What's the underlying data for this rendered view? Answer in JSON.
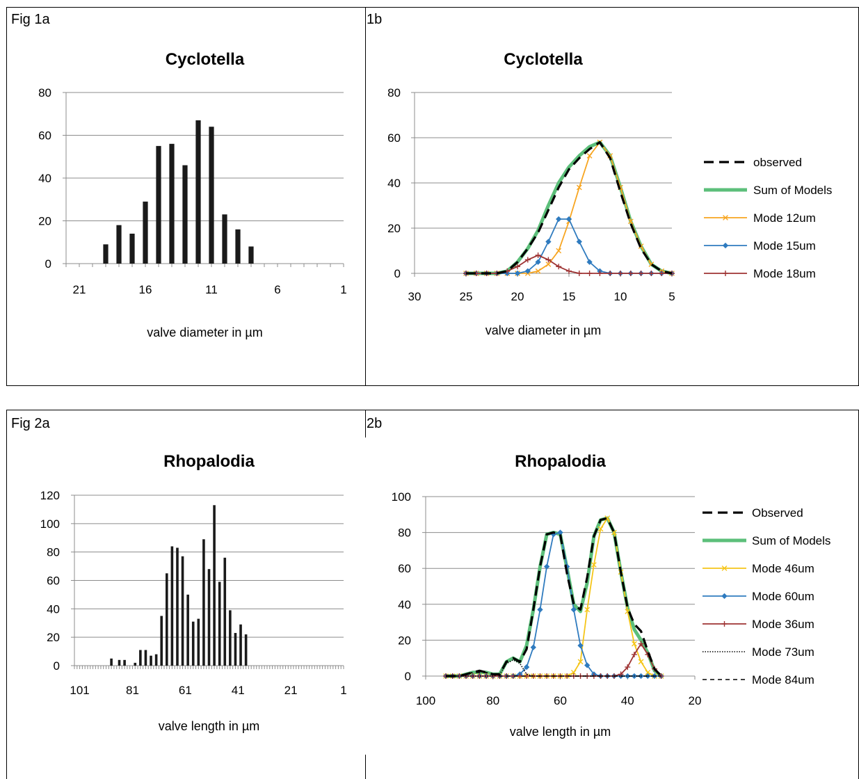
{
  "panels": {
    "fig1a_label": "Fig 1a",
    "fig1b_label": "1b",
    "fig2a_label": "Fig 2a",
    "fig2b_label": "2b"
  },
  "chart_data": [
    {
      "id": "fig1a",
      "type": "bar",
      "title": "Cyclotella",
      "xlabel": "valve diameter in µm",
      "ylabel": "",
      "x_reversed": true,
      "xlim": [
        22,
        1
      ],
      "ylim": [
        0,
        80
      ],
      "yticks": [
        0,
        20,
        40,
        60,
        80
      ],
      "xticks": [
        21,
        16,
        11,
        6,
        1
      ],
      "grid": true,
      "legend": "none",
      "bar_color": "#1a1a1a",
      "x": [
        19,
        18,
        17,
        16,
        15,
        14,
        13,
        12,
        11,
        10,
        9,
        8
      ],
      "values": [
        9,
        18,
        14,
        29,
        55,
        56,
        46,
        67,
        64,
        23,
        16,
        8
      ]
    },
    {
      "id": "fig1b",
      "type": "line",
      "title": "Cyclotella",
      "xlabel": "valve diameter in µm",
      "ylabel": "",
      "x_reversed": true,
      "xlim": [
        30,
        5
      ],
      "ylim": [
        0,
        80
      ],
      "yticks": [
        0,
        20,
        40,
        60,
        80
      ],
      "xticks": [
        30,
        25,
        20,
        15,
        10,
        5
      ],
      "grid": true,
      "legend": "right",
      "x": [
        25,
        24,
        23,
        22,
        21,
        20,
        19,
        18,
        17,
        16,
        15,
        14,
        13,
        12,
        11,
        10,
        9,
        8,
        7,
        6,
        5
      ],
      "series": [
        {
          "name": "observed",
          "color": "#000000",
          "style": "longdash",
          "marker": "none",
          "values": [
            0,
            0,
            0,
            0,
            1,
            5,
            11,
            18,
            28,
            38,
            46,
            51,
            55,
            58,
            51,
            36,
            22,
            11,
            4,
            1,
            0
          ]
        },
        {
          "name": "Sum of Models",
          "color": "#5cbf7a",
          "style": "thick",
          "marker": "none",
          "values": [
            0,
            0,
            0,
            0,
            1,
            5,
            11,
            19,
            30,
            40,
            47,
            52,
            56,
            58,
            52,
            38,
            23,
            12,
            4,
            1,
            0
          ]
        },
        {
          "name": "Mode 12um",
          "color": "#f7a520",
          "style": "solid",
          "marker": "x",
          "values": [
            0,
            0,
            0,
            0,
            0,
            0,
            0,
            1,
            4,
            10,
            23,
            38,
            52,
            58,
            52,
            38,
            23,
            12,
            4,
            1,
            0
          ]
        },
        {
          "name": "Mode 15um",
          "color": "#2f7bbf",
          "style": "solid",
          "marker": "diamond",
          "values": [
            0,
            0,
            0,
            0,
            0,
            0,
            1,
            5,
            14,
            24,
            24,
            14,
            5,
            1,
            0,
            0,
            0,
            0,
            0,
            0,
            0
          ]
        },
        {
          "name": "Mode 18um",
          "color": "#9e3333",
          "style": "solid",
          "marker": "plus",
          "values": [
            0,
            0,
            0,
            0,
            1,
            3,
            6,
            8,
            6,
            3,
            1,
            0,
            0,
            0,
            0,
            0,
            0,
            0,
            0,
            0,
            0
          ]
        }
      ]
    },
    {
      "id": "fig2a",
      "type": "bar",
      "title": "Rhopalodia",
      "xlabel": "valve length in µm",
      "ylabel": "",
      "x_reversed": true,
      "xlim": [
        103,
        1
      ],
      "ylim": [
        0,
        120
      ],
      "yticks": [
        0,
        20,
        40,
        60,
        80,
        100,
        120
      ],
      "xticks": [
        101,
        81,
        61,
        41,
        21,
        1
      ],
      "grid": true,
      "legend": "none",
      "bar_color": "#1a1a1a",
      "x": [
        89,
        86,
        84,
        80,
        78,
        76,
        74,
        72,
        70,
        68,
        66,
        64,
        62,
        60,
        58,
        56,
        54,
        52,
        50,
        48,
        46,
        44,
        42,
        40,
        38,
        36
      ],
      "values": [
        5,
        4,
        4,
        2,
        11,
        11,
        7,
        8,
        35,
        65,
        84,
        83,
        77,
        50,
        31,
        33,
        89,
        68,
        113,
        59,
        76,
        39,
        23,
        29,
        22,
        0
      ]
    },
    {
      "id": "fig2b",
      "type": "line",
      "title": "Rhopalodia",
      "xlabel": "valve length in µm",
      "ylabel": "",
      "x_reversed": true,
      "xlim": [
        100,
        20
      ],
      "ylim": [
        0,
        100
      ],
      "yticks": [
        0,
        20,
        40,
        60,
        80,
        100
      ],
      "xticks": [
        100,
        80,
        60,
        40,
        20
      ],
      "grid": true,
      "legend": "right",
      "x": [
        94,
        92,
        90,
        88,
        86,
        84,
        82,
        80,
        78,
        76,
        74,
        72,
        70,
        68,
        66,
        64,
        62,
        60,
        58,
        56,
        54,
        52,
        50,
        48,
        46,
        44,
        42,
        40,
        38,
        36,
        34,
        32,
        30
      ],
      "series": [
        {
          "name": "Observed",
          "color": "#000000",
          "style": "longdash",
          "marker": "none",
          "values": [
            0,
            0,
            0,
            1,
            2,
            3,
            2,
            1,
            1,
            8,
            10,
            8,
            15,
            37,
            61,
            79,
            80,
            79,
            57,
            40,
            37,
            55,
            78,
            87,
            88,
            80,
            58,
            38,
            29,
            25,
            14,
            4,
            0
          ]
        },
        {
          "name": "Sum of Models",
          "color": "#5cbf7a",
          "style": "thick",
          "marker": "none",
          "values": [
            0,
            0,
            0,
            1,
            2,
            2,
            2,
            1,
            1,
            8,
            10,
            8,
            17,
            37,
            61,
            79,
            80,
            79,
            60,
            40,
            36,
            52,
            78,
            87,
            88,
            80,
            58,
            38,
            26,
            20,
            13,
            3,
            0
          ]
        },
        {
          "name": "Mode 46um",
          "color": "#f5c518",
          "style": "solid",
          "marker": "x",
          "values": [
            0,
            0,
            0,
            0,
            0,
            0,
            0,
            0,
            0,
            0,
            0,
            0,
            0,
            0,
            0,
            0,
            0,
            0,
            0,
            2,
            8,
            37,
            62,
            82,
            88,
            80,
            58,
            36,
            18,
            8,
            2,
            0,
            0
          ]
        },
        {
          "name": "Mode 60um",
          "color": "#2f7bbf",
          "style": "solid",
          "marker": "diamond",
          "values": [
            0,
            0,
            0,
            0,
            0,
            0,
            0,
            0,
            0,
            0,
            0,
            1,
            5,
            16,
            37,
            61,
            79,
            80,
            61,
            37,
            17,
            6,
            1,
            0,
            0,
            0,
            0,
            0,
            0,
            0,
            0,
            0,
            0
          ]
        },
        {
          "name": "Mode 36um",
          "color": "#9e3333",
          "style": "solid",
          "marker": "plus",
          "values": [
            0,
            0,
            0,
            0,
            0,
            0,
            0,
            0,
            0,
            0,
            0,
            0,
            0,
            0,
            0,
            0,
            0,
            0,
            0,
            0,
            0,
            0,
            0,
            0,
            0,
            0,
            1,
            5,
            12,
            18,
            12,
            4,
            0
          ]
        },
        {
          "name": "Mode 73um",
          "color": "#000000",
          "style": "dotted",
          "marker": "none",
          "values": [
            0,
            0,
            0,
            0,
            0,
            0,
            0,
            0,
            1,
            7,
            9,
            7,
            1,
            0,
            0,
            0,
            0,
            0,
            0,
            0,
            0,
            0,
            0,
            0,
            0,
            0,
            0,
            0,
            0,
            0,
            0,
            0,
            0
          ]
        },
        {
          "name": "Mode 84um",
          "color": "#000000",
          "style": "shortdash",
          "marker": "none",
          "values": [
            0,
            0,
            0,
            1,
            2,
            2,
            2,
            1,
            0,
            0,
            0,
            0,
            0,
            0,
            0,
            0,
            0,
            0,
            0,
            0,
            0,
            0,
            0,
            0,
            0,
            0,
            0,
            0,
            0,
            0,
            0,
            0,
            0
          ]
        }
      ]
    }
  ]
}
